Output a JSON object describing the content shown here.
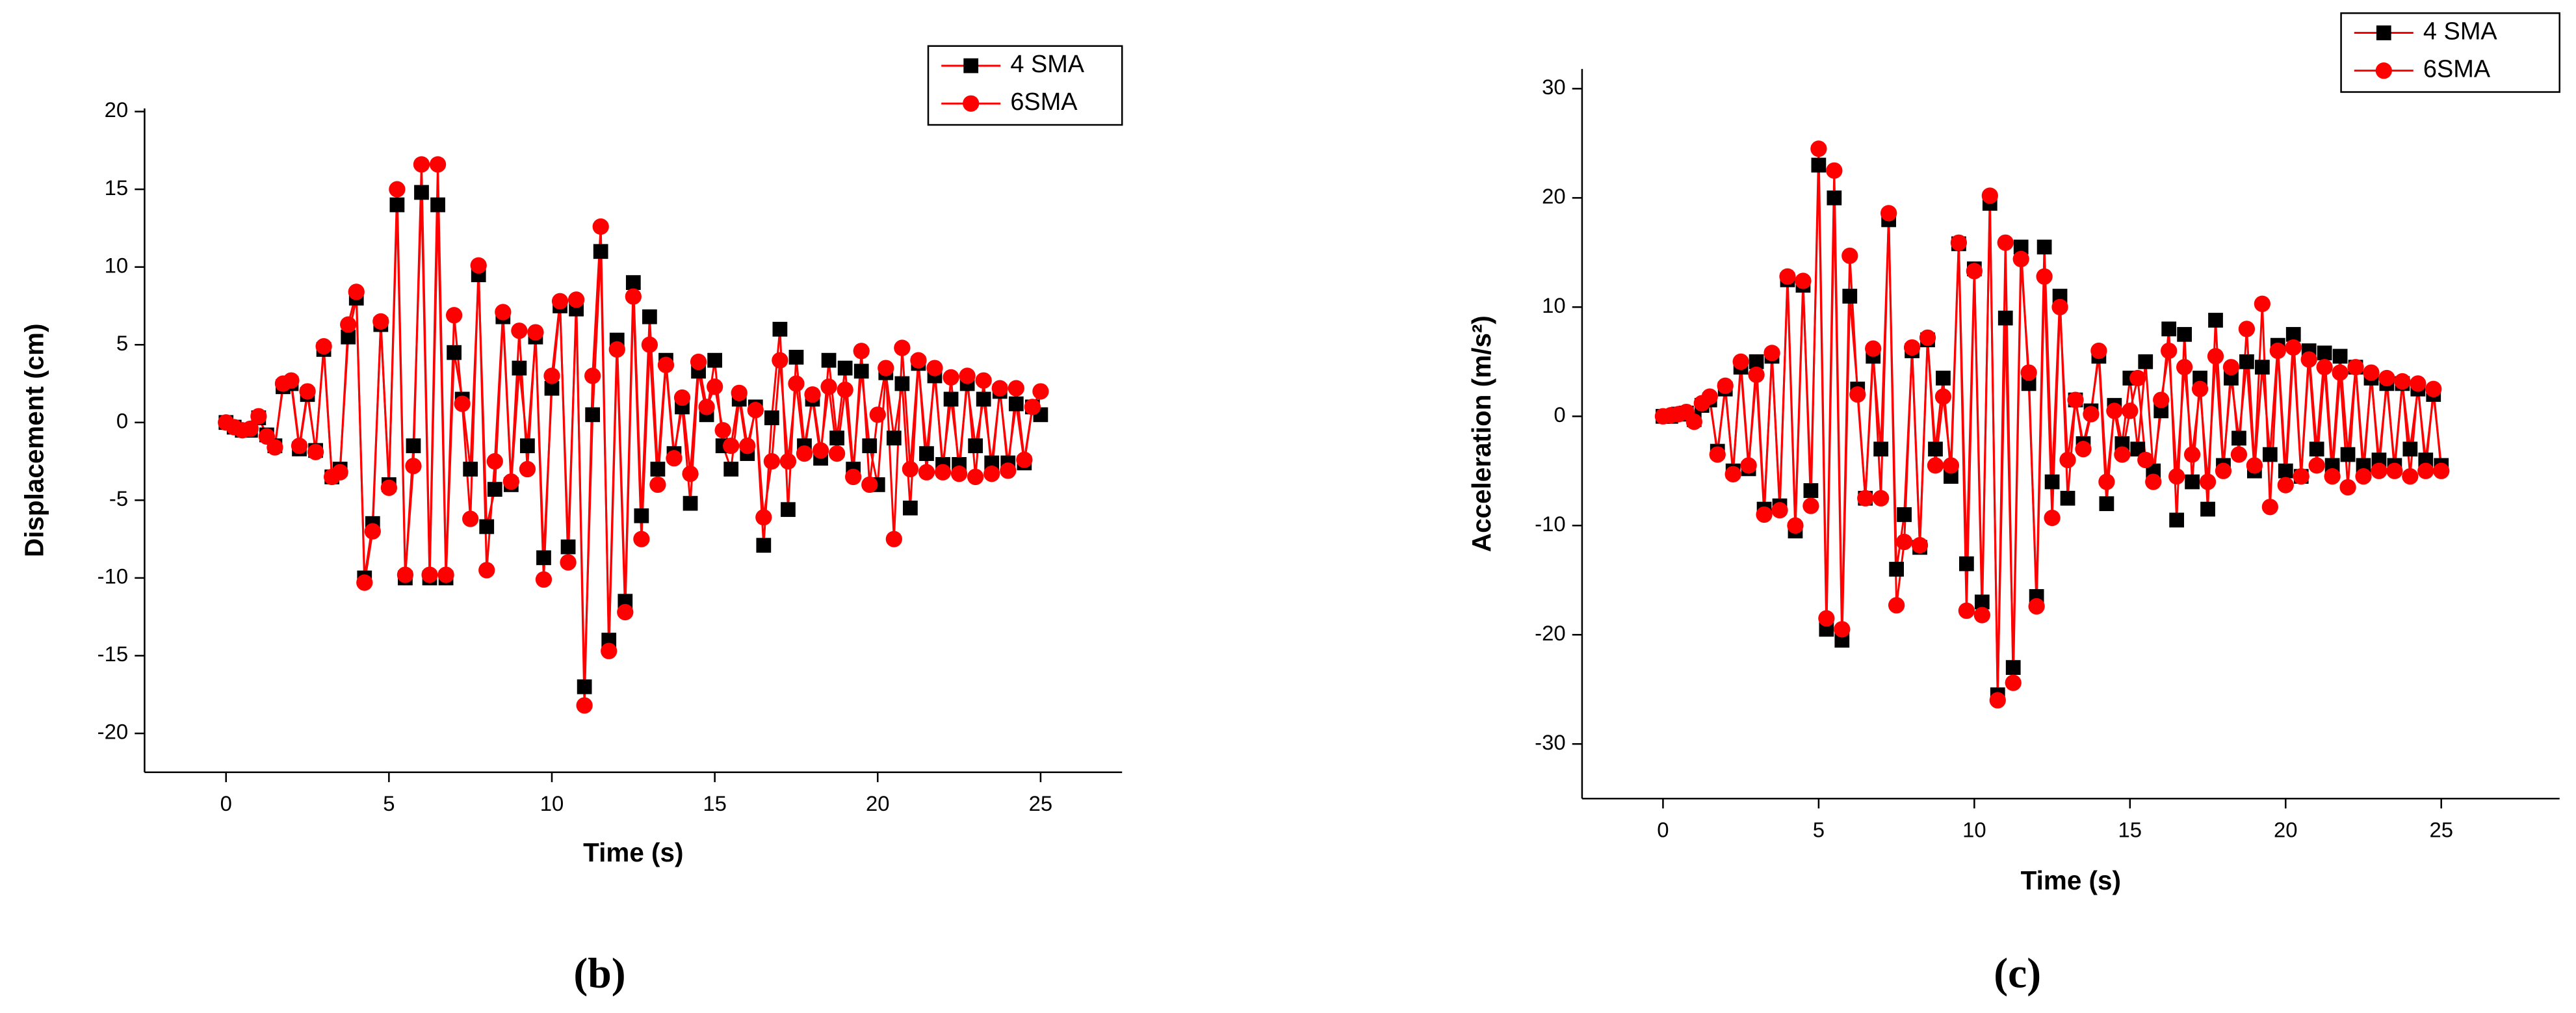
{
  "chart_data": [
    {
      "type": "line",
      "subtitle": "(b)",
      "x_label": "Time (s)",
      "y_label": "Displacement (cm)",
      "xlim": [
        -2.5,
        27.5
      ],
      "ylim": [
        -22.5,
        20.2
      ],
      "xticks": [
        0,
        5,
        10,
        15,
        20,
        25
      ],
      "yticks": [
        -20,
        -15,
        -10,
        -5,
        0,
        5,
        10,
        15,
        20
      ],
      "legend": "upper right",
      "x": [
        0,
        0.25,
        0.5,
        0.75,
        1,
        1.25,
        1.5,
        1.75,
        2,
        2.25,
        2.5,
        2.75,
        3,
        3.25,
        3.5,
        3.75,
        4,
        4.25,
        4.5,
        4.75,
        5,
        5.25,
        5.5,
        5.75,
        6,
        6.25,
        6.5,
        6.75,
        7,
        7.25,
        7.5,
        7.75,
        8,
        8.25,
        8.5,
        8.75,
        9,
        9.25,
        9.5,
        9.75,
        10,
        10.25,
        10.5,
        10.75,
        11,
        11.25,
        11.5,
        11.75,
        12,
        12.25,
        12.5,
        12.75,
        13,
        13.25,
        13.5,
        13.75,
        14,
        14.25,
        14.5,
        14.75,
        15,
        15.25,
        15.5,
        15.75,
        16,
        16.25,
        16.5,
        16.75,
        17,
        17.25,
        17.5,
        17.75,
        18,
        18.25,
        18.5,
        18.75,
        19,
        19.25,
        19.5,
        19.75,
        20,
        20.25,
        20.5,
        20.75,
        21,
        21.25,
        21.5,
        21.75,
        22,
        22.25,
        22.5,
        22.75,
        23,
        23.25,
        23.5,
        23.75,
        24,
        24.25,
        24.5,
        24.75,
        25
      ],
      "series": [
        {
          "name": "4 SMA",
          "color": "#ff0000",
          "marker_color": "#000000",
          "marker": "square",
          "values": [
            0,
            -0.3,
            -0.5,
            -0.5,
            0.3,
            -0.8,
            -1.5,
            2.3,
            2.5,
            -1.7,
            1.8,
            -1.8,
            4.7,
            -3.5,
            -3,
            5.5,
            8,
            -10,
            -6.5,
            6.3,
            -4,
            14,
            -10,
            -1.5,
            14.8,
            -10,
            14,
            -10,
            4.5,
            1.5,
            -3,
            9.5,
            -6.7,
            -4.3,
            6.8,
            -4,
            3.5,
            -1.5,
            5.5,
            -8.7,
            2.2,
            7.5,
            -8,
            7.3,
            -17,
            0.5,
            11,
            -14,
            5.3,
            -11.5,
            9,
            -6,
            6.8,
            -3,
            4,
            -2,
            1,
            -5.2,
            3.3,
            0.5,
            4,
            -1.5,
            -3,
            1.5,
            -2,
            1,
            -7.9,
            0.3,
            6,
            -5.6,
            4.2,
            -1.5,
            1.5,
            -2.3,
            4,
            -1,
            3.5,
            -3,
            3.3,
            -1.5,
            -4,
            3.2,
            -1,
            2.5,
            -5.5,
            3.8,
            -2,
            3,
            -2.7,
            1.5,
            -2.7,
            2.5,
            -1.5,
            1.5,
            -2.6,
            2,
            -2.6,
            1.2,
            -2.6,
            1,
            0.5
          ]
        },
        {
          "name": "6SMA",
          "color": "#ff0000",
          "marker_color": "#ff0000",
          "marker": "circle",
          "values": [
            0,
            -0.3,
            -0.5,
            -0.4,
            0.4,
            -0.9,
            -1.6,
            2.5,
            2.7,
            -1.5,
            2,
            -1.9,
            4.9,
            -3.5,
            -3.2,
            6.3,
            8.4,
            -10.3,
            -7,
            6.5,
            -4.2,
            15,
            -9.8,
            -2.8,
            16.6,
            -9.8,
            16.6,
            -9.8,
            6.9,
            1.2,
            -6.2,
            10.1,
            -9.5,
            -2.5,
            7.1,
            -3.8,
            5.9,
            -3,
            5.8,
            -10.1,
            3,
            7.8,
            -9,
            7.9,
            -18.2,
            3,
            12.6,
            -14.7,
            4.7,
            -12.2,
            8.1,
            -7.5,
            5,
            -4,
            3.7,
            -2.3,
            1.6,
            -3.3,
            3.9,
            1,
            2.3,
            -0.5,
            -1.5,
            1.9,
            -1.5,
            0.8,
            -6.1,
            -2.5,
            4,
            -2.5,
            2.5,
            -2,
            1.8,
            -1.8,
            2.3,
            -2,
            2.1,
            -3.5,
            4.6,
            -4,
            0.5,
            3.5,
            -7.5,
            4.8,
            -3,
            4,
            -3.2,
            3.5,
            -3.2,
            2.9,
            -3.3,
            3,
            -3.5,
            2.7,
            -3.3,
            2.2,
            -3.1,
            2.2,
            -2.4,
            1,
            2
          ]
        }
      ]
    },
    {
      "type": "line",
      "subtitle": "(c)",
      "x_label": "Time (s)",
      "y_label": "Acceleration (m/s²)",
      "xlim": [
        -2.6,
        28.8
      ],
      "ylim": [
        -35,
        31.8
      ],
      "xticks": [
        0,
        5,
        10,
        15,
        20,
        25
      ],
      "yticks": [
        -30,
        -20,
        -10,
        0,
        10,
        20,
        30
      ],
      "legend": "upper right",
      "x": [
        0,
        0.25,
        0.5,
        0.75,
        1,
        1.25,
        1.5,
        1.75,
        2,
        2.25,
        2.5,
        2.75,
        3,
        3.25,
        3.5,
        3.75,
        4,
        4.25,
        4.5,
        4.75,
        5,
        5.25,
        5.5,
        5.75,
        6,
        6.25,
        6.5,
        6.75,
        7,
        7.25,
        7.5,
        7.75,
        8,
        8.25,
        8.5,
        8.75,
        9,
        9.25,
        9.5,
        9.75,
        10,
        10.25,
        10.5,
        10.75,
        11,
        11.25,
        11.5,
        11.75,
        12,
        12.25,
        12.5,
        12.75,
        13,
        13.25,
        13.5,
        13.75,
        14,
        14.25,
        14.5,
        14.75,
        15,
        15.25,
        15.5,
        15.75,
        16,
        16.25,
        16.5,
        16.75,
        17,
        17.25,
        17.5,
        17.75,
        18,
        18.25,
        18.5,
        18.75,
        19,
        19.25,
        19.5,
        19.75,
        20,
        20.25,
        20.5,
        20.75,
        21,
        21.25,
        21.5,
        21.75,
        22,
        22.25,
        22.5,
        22.75,
        23,
        23.25,
        23.5,
        23.75,
        24,
        24.25,
        24.5,
        24.75,
        25
      ],
      "series": [
        {
          "name": "4 SMA",
          "color": "#ff0000",
          "marker_color": "#000000",
          "marker": "square",
          "values": [
            0,
            0,
            0.2,
            0.3,
            -0.3,
            1,
            1.5,
            -3.2,
            2.5,
            -5,
            4.5,
            -4.8,
            5,
            -8.5,
            5.5,
            -8.2,
            12.5,
            -10.5,
            12,
            -6.8,
            23,
            -19.5,
            20,
            -20.5,
            11,
            2.5,
            -7.5,
            5.5,
            -3,
            18,
            -14,
            -9,
            6,
            -12,
            7,
            -3,
            3.5,
            -5.5,
            15.8,
            -13.5,
            13.5,
            -17,
            19.5,
            -25.5,
            9,
            -23,
            15.5,
            3,
            -16.5,
            15.5,
            -6,
            11,
            -7.5,
            1.5,
            -2.5,
            0.5,
            5.5,
            -8,
            1,
            -2.5,
            3.5,
            -3,
            5,
            -5,
            0.5,
            8,
            -9.5,
            7.5,
            -6,
            3.5,
            -8.5,
            8.8,
            -4.5,
            3.5,
            -2,
            5,
            -5,
            4.5,
            -3.5,
            6.5,
            -5,
            7.5,
            -5.5,
            6,
            -3,
            5.8,
            -4.5,
            5.5,
            -3.5,
            4.5,
            -4.5,
            3.5,
            -4,
            3,
            -4.5,
            3,
            -3,
            2.5,
            -4,
            2,
            -4.5
          ]
        },
        {
          "name": "6SMA",
          "color": "#ff0000",
          "marker_color": "#ff0000",
          "marker": "circle",
          "values": [
            0,
            0.1,
            0.2,
            0.4,
            -0.5,
            1.2,
            1.8,
            -3.5,
            2.8,
            -5.3,
            5,
            -4.5,
            3.8,
            -9,
            5.8,
            -8.6,
            12.8,
            -10,
            12.4,
            -8.2,
            24.5,
            -18.5,
            22.5,
            -19.5,
            14.7,
            2,
            -7.5,
            6.2,
            -7.5,
            18.6,
            -17.3,
            -11.5,
            6.3,
            -11.8,
            7.2,
            -4.5,
            1.8,
            -4.5,
            15.9,
            -17.8,
            13.3,
            -18.2,
            20.2,
            -26,
            15.9,
            -24.4,
            14.4,
            4,
            -17.4,
            12.8,
            -9.3,
            10,
            -4,
            1.5,
            -3,
            0.2,
            6,
            -6,
            0.5,
            -3.5,
            0.5,
            3.5,
            -4,
            -6,
            1.5,
            6,
            -5.5,
            4.5,
            -3.5,
            2.5,
            -6,
            5.5,
            -5,
            4.5,
            -3.5,
            8,
            -4.5,
            10.3,
            -8.3,
            6,
            -6.3,
            6.3,
            -5.5,
            5.2,
            -4.5,
            4.5,
            -5.5,
            4,
            -6.5,
            4.5,
            -5.5,
            4,
            -5,
            3.5,
            -5,
            3.2,
            -5.5,
            3,
            -5,
            2.5,
            -5
          ]
        }
      ]
    }
  ]
}
